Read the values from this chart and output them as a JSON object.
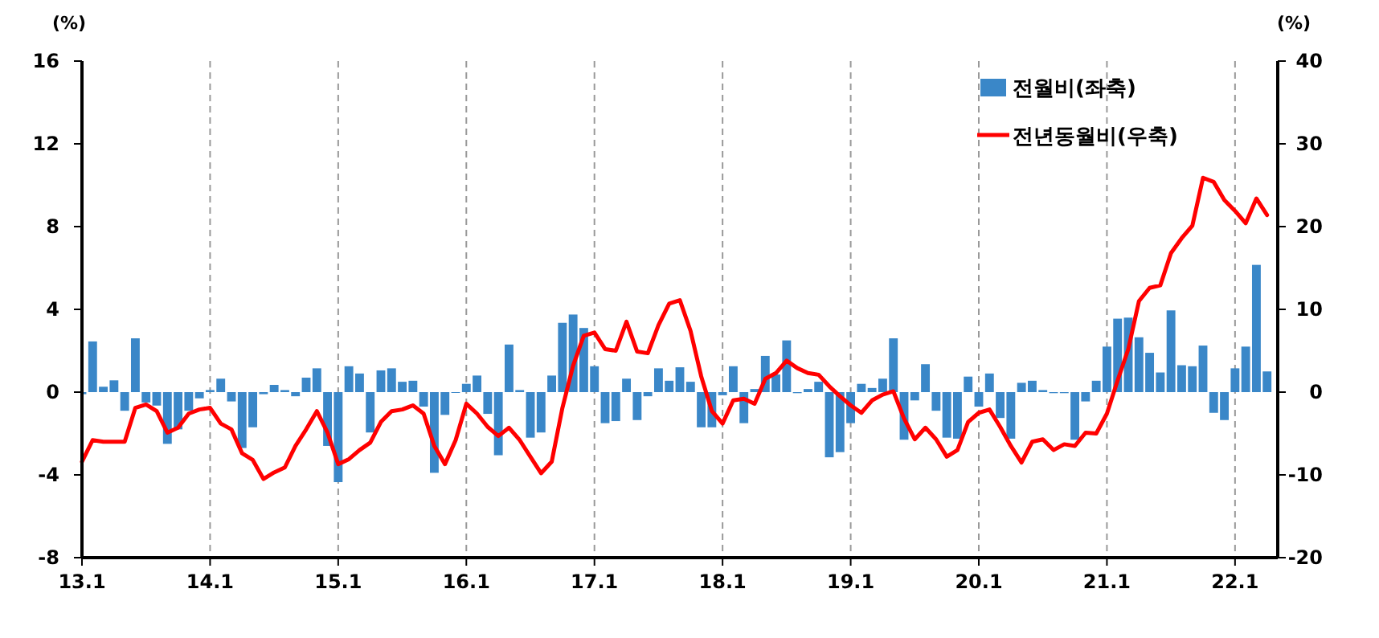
{
  "chart_data": {
    "type": "bar",
    "categories": [
      "13.1",
      null,
      null,
      null,
      null,
      null,
      null,
      null,
      null,
      null,
      null,
      null,
      "14.1",
      null,
      null,
      null,
      null,
      null,
      null,
      null,
      null,
      null,
      null,
      null,
      "15.1",
      null,
      null,
      null,
      null,
      null,
      null,
      null,
      null,
      null,
      null,
      null,
      "16.1",
      null,
      null,
      null,
      null,
      null,
      null,
      null,
      null,
      null,
      null,
      null,
      "17.1",
      null,
      null,
      null,
      null,
      null,
      null,
      null,
      null,
      null,
      null,
      null,
      "18.1",
      null,
      null,
      null,
      null,
      null,
      null,
      null,
      null,
      null,
      null,
      null,
      "19.1",
      null,
      null,
      null,
      null,
      null,
      null,
      null,
      null,
      null,
      null,
      null,
      "20.1",
      null,
      null,
      null,
      null,
      null,
      null,
      null,
      null,
      null,
      null,
      null,
      "21.1",
      null,
      null,
      null,
      null,
      null,
      null,
      null,
      null,
      null,
      null,
      null,
      "22.1",
      null,
      null,
      null
    ],
    "ylabel": "(%)",
    "y2label": "(%)",
    "ylim": [
      -8,
      16
    ],
    "yticks": [
      -8,
      -4,
      0,
      4,
      8,
      12,
      16
    ],
    "y2lim": [
      -20,
      40
    ],
    "y2ticks": [
      -20,
      -10,
      0,
      10,
      20,
      30,
      40
    ],
    "grid": "x",
    "legend": "top right",
    "series": [
      {
        "name": "전월비(좌축)",
        "color": "#3a87c8",
        "values": [
          -0.1,
          2.45,
          0.26,
          0.57,
          -0.9,
          2.6,
          -0.5,
          -0.65,
          -2.5,
          -1.8,
          -0.9,
          -0.3,
          0.1,
          0.65,
          -0.45,
          -2.7,
          -1.7,
          -0.1,
          0.35,
          0.1,
          -0.2,
          0.7,
          1.15,
          -2.6,
          -4.35,
          1.25,
          0.9,
          -1.95,
          1.05,
          1.15,
          0.5,
          0.55,
          -0.7,
          -3.9,
          -1.1,
          0.0,
          0.4,
          0.8,
          -1.05,
          -3.05,
          2.3,
          0.1,
          -2.2,
          -1.95,
          0.8,
          3.35,
          3.75,
          3.1,
          1.25,
          -1.5,
          -1.4,
          0.65,
          -1.35,
          -0.2,
          1.15,
          0.55,
          1.2,
          0.5,
          -1.7,
          -1.7,
          -0.15,
          1.25,
          -1.5,
          0.15,
          1.75,
          0.85,
          2.5,
          -0.05,
          0.15,
          0.5,
          -3.15,
          -2.9,
          -1.5,
          0.4,
          0.2,
          0.65,
          2.6,
          -2.3,
          -0.4,
          1.35,
          -0.9,
          -2.2,
          -2.25,
          0.75,
          -0.7,
          0.9,
          -1.25,
          -2.25,
          0.45,
          0.55,
          0.1,
          -0.05,
          -0.05,
          -2.3,
          -0.45,
          0.55,
          2.2,
          3.55,
          3.6,
          2.65,
          1.9,
          0.95,
          3.95,
          1.3,
          1.25,
          2.25,
          -1.0,
          -1.35,
          1.15,
          2.2,
          6.15,
          1.0
        ]
      },
      {
        "name": "전년동월비(우축)",
        "type": "line",
        "axis": "y2",
        "color": "#ff0000",
        "values": [
          -8.4,
          -5.8,
          -6.0,
          -6.0,
          -6.0,
          -1.9,
          -1.5,
          -2.3,
          -4.9,
          -4.3,
          -2.6,
          -2.1,
          -1.9,
          -3.8,
          -4.5,
          -7.4,
          -8.2,
          -10.5,
          -9.7,
          -9.1,
          -6.5,
          -4.5,
          -2.3,
          -4.9,
          -8.7,
          -8.1,
          -7.0,
          -6.1,
          -3.6,
          -2.3,
          -2.1,
          -1.6,
          -2.6,
          -6.5,
          -8.7,
          -5.8,
          -1.4,
          -2.6,
          -4.2,
          -5.3,
          -4.3,
          -5.8,
          -7.8,
          -9.8,
          -8.4,
          -1.9,
          3.2,
          6.8,
          7.2,
          5.2,
          5.0,
          8.5,
          4.9,
          4.7,
          8.1,
          10.7,
          11.1,
          7.4,
          1.9,
          -2.3,
          -3.8,
          -1.0,
          -0.8,
          -1.4,
          1.6,
          2.3,
          3.8,
          2.9,
          2.3,
          2.1,
          0.7,
          -0.5,
          -1.6,
          -2.5,
          -1.0,
          -0.3,
          0.1,
          -3.2,
          -5.7,
          -4.3,
          -5.7,
          -7.8,
          -7.0,
          -3.6,
          -2.5,
          -2.1,
          -4.2,
          -6.5,
          -8.5,
          -6.0,
          -5.7,
          -7.0,
          -6.3,
          -6.5,
          -4.9,
          -5.0,
          -2.6,
          1.4,
          5.2,
          11.0,
          12.6,
          12.9,
          16.8,
          18.6,
          20.1,
          25.9,
          25.4,
          23.2,
          21.9,
          20.4,
          23.4,
          21.4
        ]
      }
    ]
  }
}
